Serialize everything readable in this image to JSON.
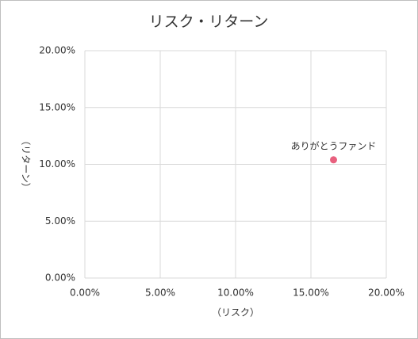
{
  "chart_data": {
    "type": "scatter",
    "title": "リスク・リターン",
    "x_label": "（リスク）",
    "y_label": "（リターン）",
    "series": [
      {
        "name": "ありがとうファンド",
        "color": "#e8607e",
        "x": [
          16.5
        ],
        "values": [
          10.4
        ]
      }
    ],
    "xlim": [
      0,
      20
    ],
    "ylim": [
      0,
      20
    ],
    "xticks": [
      {
        "value": 0,
        "label": "0.00%"
      },
      {
        "value": 5,
        "label": "5.00%"
      },
      {
        "value": 10,
        "label": "10.00%"
      },
      {
        "value": 15,
        "label": "15.00%"
      },
      {
        "value": 20,
        "label": "20.00%"
      }
    ],
    "yticks": [
      {
        "value": 0,
        "label": "0.00%"
      },
      {
        "value": 5,
        "label": "5.00%"
      },
      {
        "value": 10,
        "label": "10.00%"
      },
      {
        "value": 15,
        "label": "15.00%"
      },
      {
        "value": 20,
        "label": "20.00%"
      }
    ],
    "grid": true
  }
}
